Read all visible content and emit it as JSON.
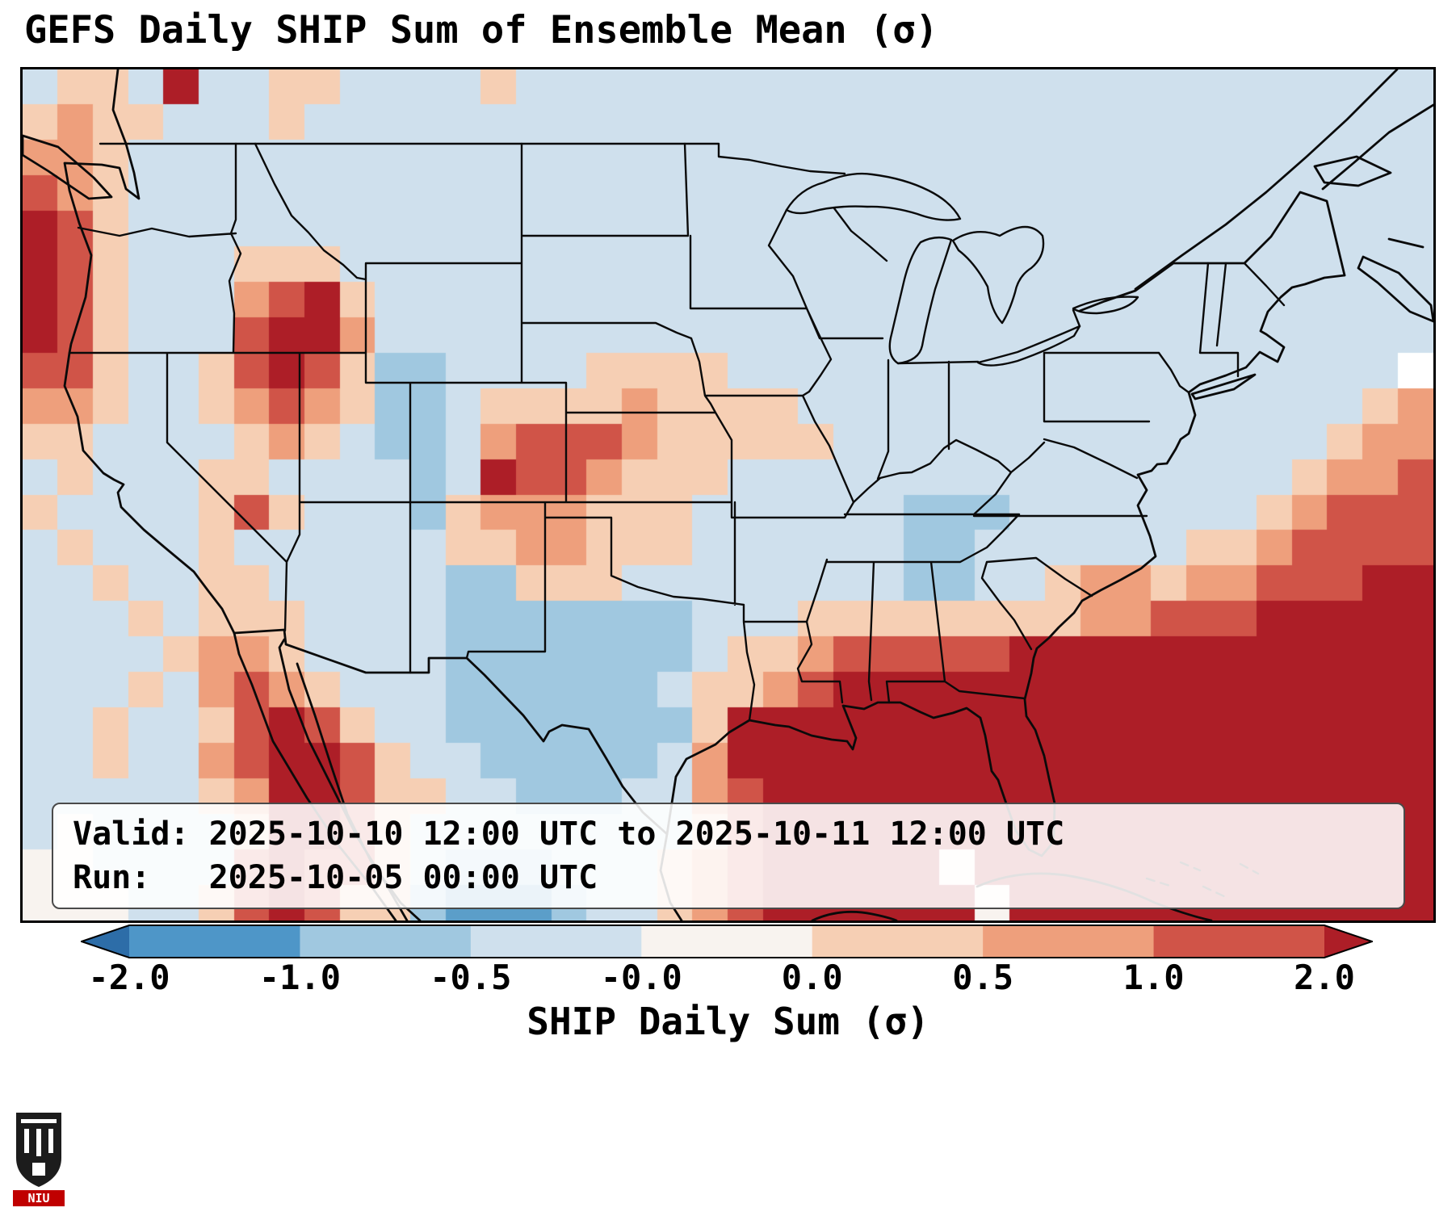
{
  "title": "GEFS Daily SHIP Sum of Ensemble Mean (σ)",
  "info_box": {
    "valid_line": "Valid: 2025-10-10 12:00 UTC to 2025-10-11 12:00 UTC",
    "run_line": "Run:   2025-10-05 00:00 UTC"
  },
  "colorbar": {
    "label": "SHIP Daily Sum (σ)",
    "ticks": [
      "-2.0",
      "-1.0",
      "-0.5",
      "-0.0",
      "0.0",
      "0.5",
      "1.0",
      "2.0"
    ],
    "segment_colors": [
      "#4e96c8",
      "#a0c8e0",
      "#cfe0ed",
      "#f8f3ef",
      "#f6cfb4",
      "#ee9f7c",
      "#d05448"
    ],
    "extend_left_color": "#2d6da8",
    "extend_right_color": "#ad1e27"
  },
  "logo": {
    "text": "NIU"
  },
  "chart_data": {
    "type": "heatmap",
    "title": "GEFS Daily SHIP Sum of Ensemble Mean (σ)",
    "colorbar_label": "SHIP Daily Sum (σ)",
    "levels": [
      -2.0,
      -1.0,
      -0.5,
      -0.0,
      0.0,
      0.5,
      1.0,
      2.0
    ],
    "colormap": "diverging blue-white-red, triangular extensions beyond -2 and 2",
    "region": "CONUS with southern Canada, Mexico, Gulf of Mexico, western Atlantic",
    "palette": {
      "l": "#cfe0ed",
      "b": "#a0c8e0",
      "B": "#5b9ec9",
      "w": "#f8f3ef",
      "s": "#f6cfb4",
      "S": "#ee9f7c",
      "r": "#d05448",
      "R": "#ad1e27"
    },
    "palette_levels": {
      "B": "-2 to -1",
      "b": "-1 to -0.5",
      "l": "-0.5 to -0.0",
      "w": "near 0",
      "s": "0.0 to 0.5",
      "S": "0.5 to 1.0",
      "r": "1.0 to 2.0",
      "R": "> 2.0"
    },
    "grid": [
      "lsslRllssllllsllllllllllllllllllllllllll",
      "sSsslllsllllllllllllllllllllllllllllllll",
      "SSslllllllllllllllllllllllllllllllllllll",
      "rSslllllllllllllllllllllllllllllllllllll",
      "Rrslllllllllllllllllllllllllllllllllllll",
      "Rrslllssslllllllllllllllllllllllllllllll",
      "RrslllSrRsllllllllllllllllllllllllllllll",
      "RrslllrRRSllllllllllllllllllllllllllllll",
      "rrsllsrRrsbbllllsssslllllllllllllllllll",
      "SSsllsSrSsbblssssSssssllllllllllllllllsS",
      "ssllllsSslbblSrrrSsssssllllllllllllllsSS",
      "lslllssllllblRrrSsssllllllllllllllllsSSr",
      "sllllsrslllbsSSSsssllllllbbblllllllsSrrr",
      "lslllsllllllssSSsssllllllbbllllllssSrrrr",
      "llsllsslllllbbsssllllllllbbllsSSsSSrrrRR",
      "lllslsssllllbbbbbbblllssssssssSSrrrRRRRR",
      "llllsSSsllllbbbbbbblssSrrrrrRRRRRRRRRRRR",
      "lllslSrSslllbbbbbblssSrRRRRRRRRRRRRRRRRR",
      "llsllsrRrsllbbbbbbbsRRRRRRRRRRRRRRRRRRRR",
      "llsllSrRRrsllbbbbblSRRRRRRRRRRRRRRRRRRRR",
      "lllllsSRRrssllbbbllSrRRRRRRRRRRRRRRRRRRR",
      "lwllllsRRrsllllllllsrRRRRRRRRRRRRRRRRRRR",
      "wwllllrRrrslbbblllsSrRRRRRwRRRRRRRRRRRRR",
      "wwwllsrRrssbBBBbllsSrRRRRRRwRRRRRRRRRRRR"
    ]
  }
}
